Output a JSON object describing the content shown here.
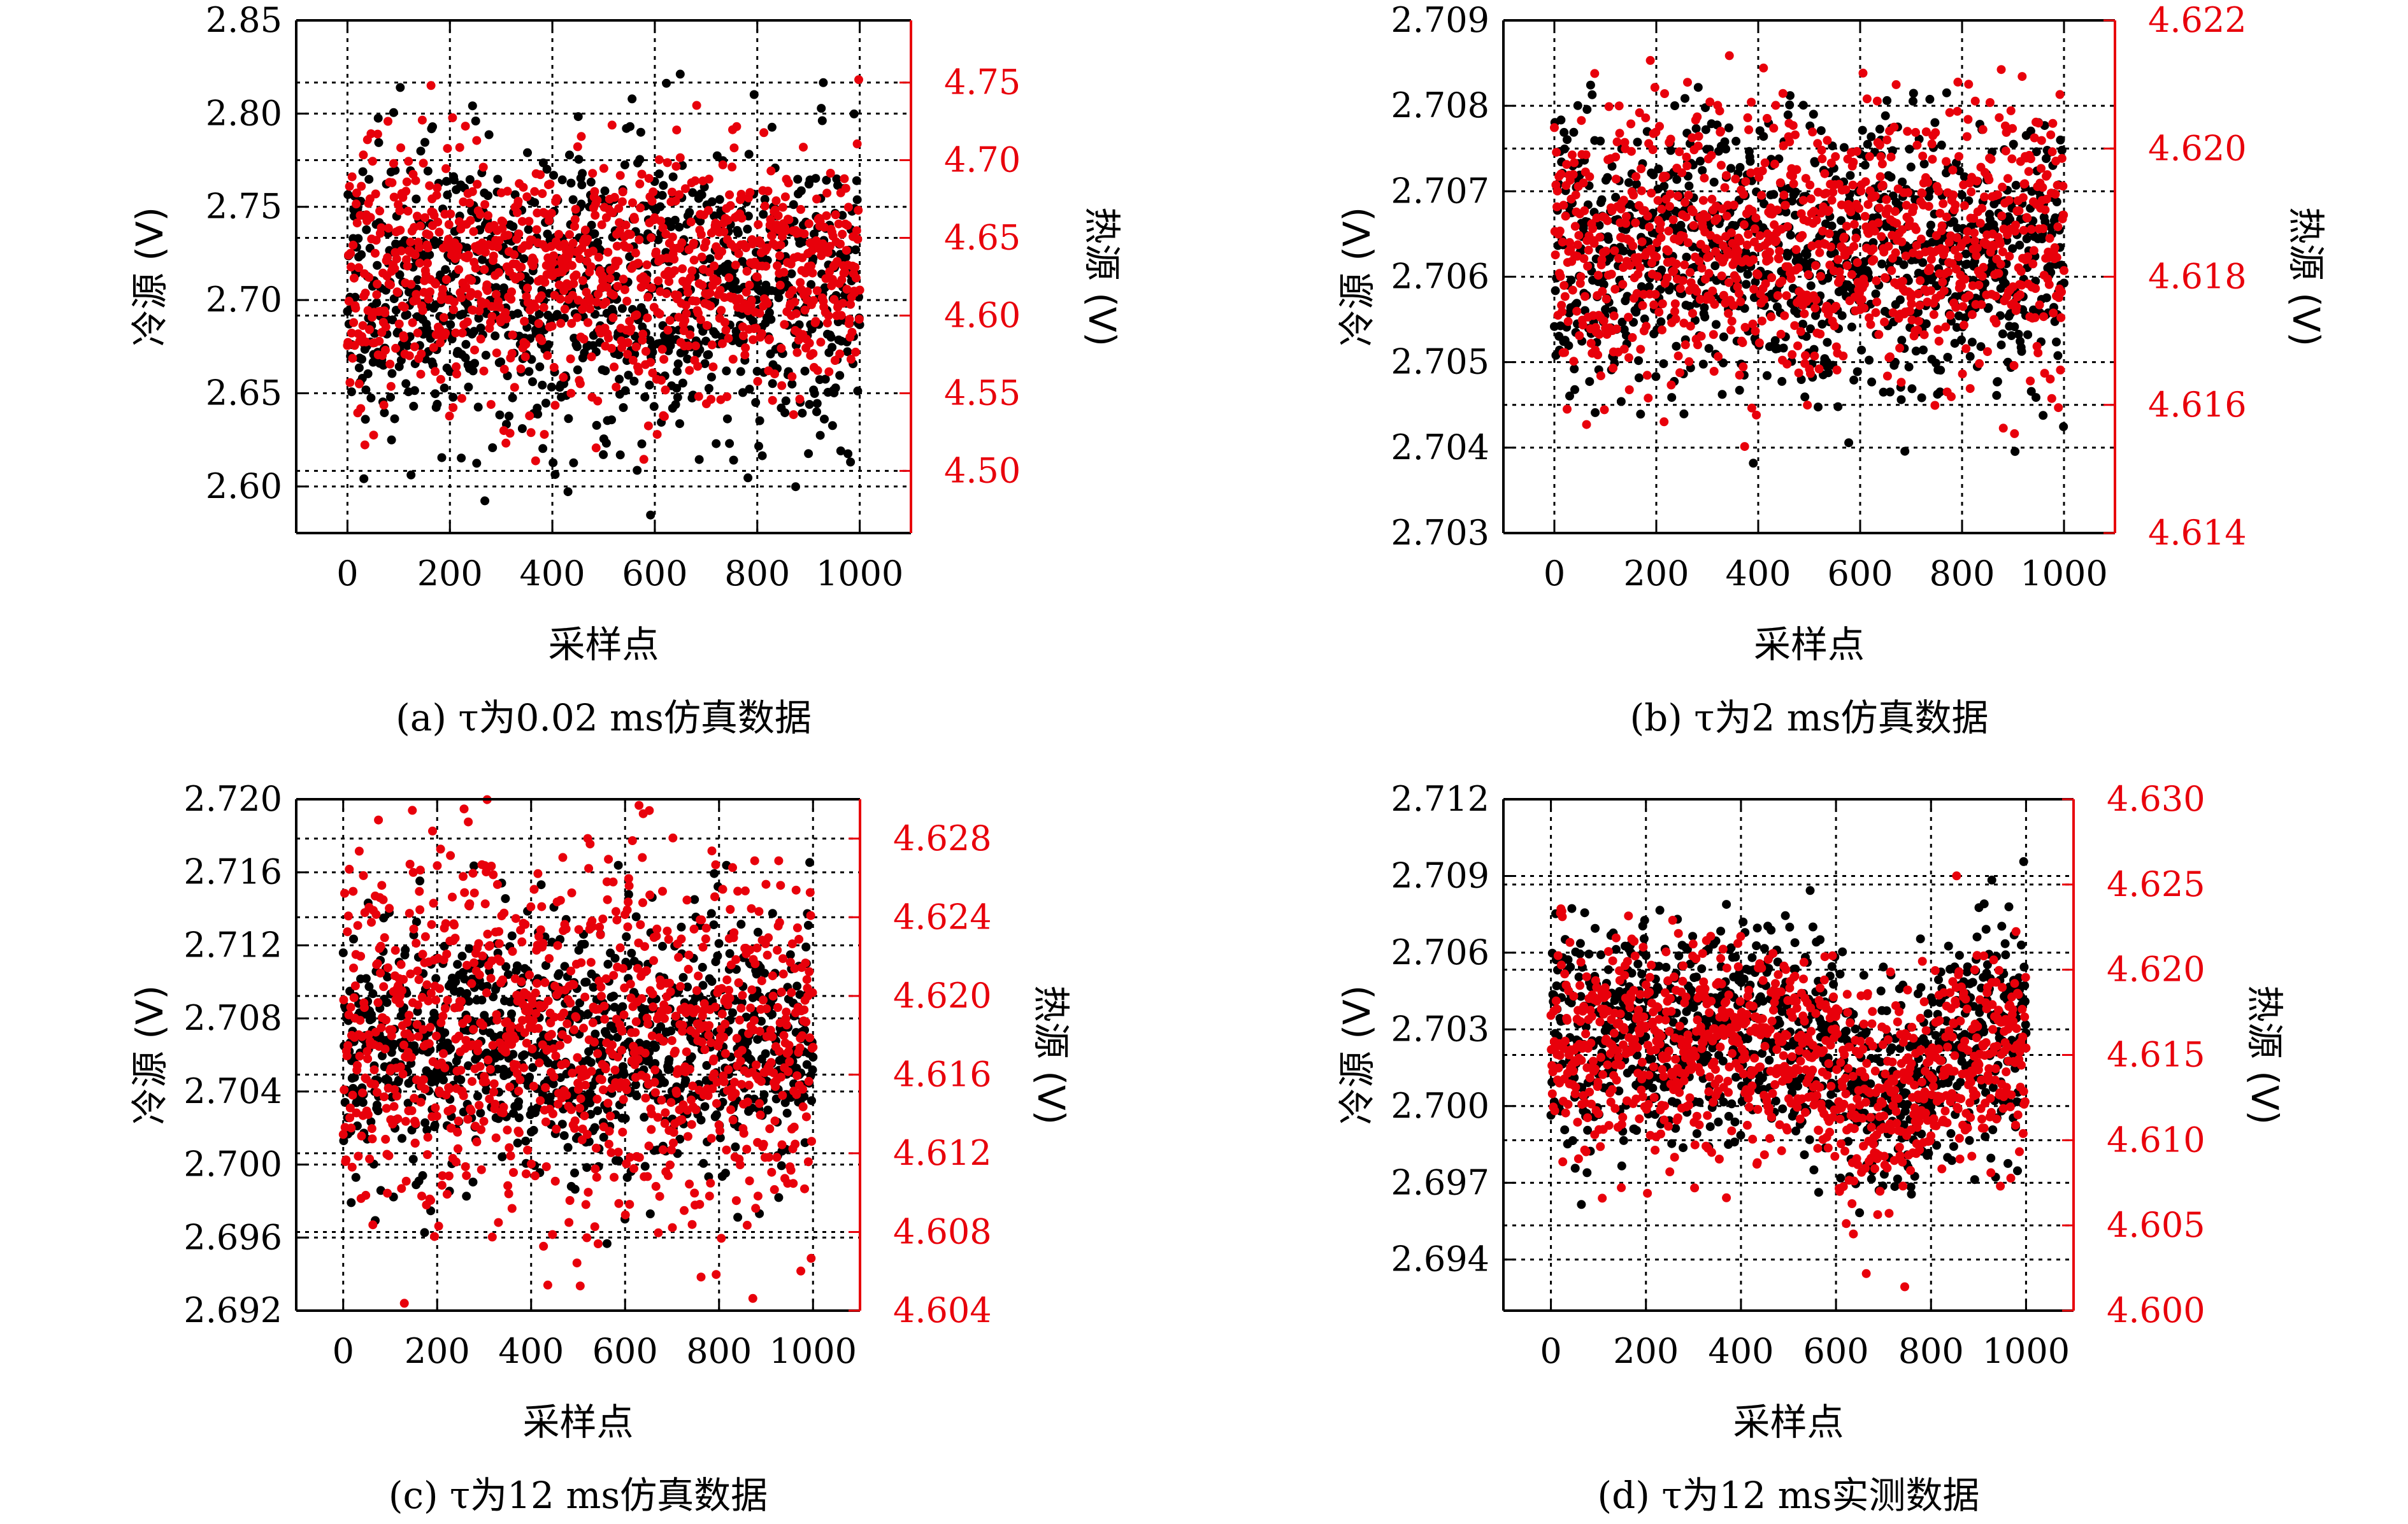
{
  "colors": {
    "cold": "#000000",
    "hot": "#e8000b",
    "grid": "#000000"
  },
  "panels": [
    {
      "caption": "(a) τ为0.02 ms仿真数据",
      "chart_data": {
        "type": "scatter",
        "xlabel": "采样点",
        "ylabel_left": "冷源 (V)",
        "ylabel_right": "热源 (V)",
        "xlim": [
          -100,
          1100
        ],
        "ylim_left": [
          2.575,
          2.85
        ],
        "ylim_right": [
          4.46,
          4.79
        ],
        "xticks": [
          0,
          200,
          400,
          600,
          800,
          1000
        ],
        "yticks_left": [
          2.6,
          2.65,
          2.7,
          2.75,
          2.8,
          2.85
        ],
        "yticks_right": [
          4.5,
          4.55,
          4.6,
          4.65,
          4.7,
          4.75
        ],
        "yticks_left_labels": [
          "2.60",
          "2.65",
          "2.70",
          "2.75",
          "2.80",
          "2.85"
        ],
        "yticks_right_labels": [
          "4.50",
          "4.55",
          "4.60",
          "4.65",
          "4.70",
          "4.75"
        ],
        "grid": true,
        "series": [
          {
            "axis": "left",
            "n": 1000,
            "x_range": [
              0,
              1000
            ],
            "mean": 2.705,
            "std": 0.04,
            "trend": "flat",
            "seed": 11
          },
          {
            "axis": "right",
            "n": 1000,
            "x_range": [
              0,
              1000
            ],
            "mean": 4.625,
            "std": 0.04,
            "trend": "flat",
            "seed": 23
          }
        ]
      }
    },
    {
      "caption": "(b) τ为2 ms仿真数据",
      "chart_data": {
        "type": "scatter",
        "xlabel": "采样点",
        "ylabel_left": "冷源 (V)",
        "ylabel_right": "热源 (V)",
        "xlim": [
          -100,
          1100
        ],
        "ylim_left": [
          2.703,
          2.709
        ],
        "ylim_right": [
          4.614,
          4.622
        ],
        "xticks": [
          0,
          200,
          400,
          600,
          800,
          1000
        ],
        "yticks_left": [
          2.703,
          2.704,
          2.705,
          2.706,
          2.707,
          2.708,
          2.709
        ],
        "yticks_right": [
          4.614,
          4.616,
          4.618,
          4.62,
          4.622
        ],
        "yticks_left_labels": [
          "2.703",
          "2.704",
          "2.705",
          "2.706",
          "2.707",
          "2.708",
          "2.709"
        ],
        "yticks_right_labels": [
          "4.614",
          "4.616",
          "4.618",
          "4.620",
          "4.622"
        ],
        "grid": true,
        "series": [
          {
            "axis": "left",
            "n": 1000,
            "x_range": [
              0,
              1000
            ],
            "mean": 2.7063,
            "std": 0.0008,
            "trend": "flat",
            "seed": 37
          },
          {
            "axis": "right",
            "n": 1000,
            "x_range": [
              0,
              1000
            ],
            "mean": 4.6185,
            "std": 0.0011,
            "trend": "flat",
            "seed": 41
          }
        ]
      }
    },
    {
      "caption": "(c) τ为12 ms仿真数据",
      "chart_data": {
        "type": "scatter",
        "xlabel": "采样点",
        "ylabel_left": "冷源 (V)",
        "ylabel_right": "热源 (V)",
        "xlim": [
          -100,
          1100
        ],
        "ylim_left": [
          2.692,
          2.72
        ],
        "ylim_right": [
          4.604,
          4.63
        ],
        "xticks": [
          0,
          200,
          400,
          600,
          800,
          1000
        ],
        "yticks_left": [
          2.692,
          2.696,
          2.7,
          2.704,
          2.708,
          2.712,
          2.716,
          2.72
        ],
        "yticks_right": [
          4.604,
          4.608,
          4.612,
          4.616,
          4.62,
          4.624,
          4.628
        ],
        "yticks_left_labels": [
          "2.692",
          "2.696",
          "2.700",
          "2.704",
          "2.708",
          "2.712",
          "2.716",
          "2.720"
        ],
        "yticks_right_labels": [
          "4.604",
          "4.608",
          "4.612",
          "4.616",
          "4.620",
          "4.624",
          "4.628"
        ],
        "grid": true,
        "series": [
          {
            "axis": "left",
            "n": 1000,
            "x_range": [
              0,
              1000
            ],
            "mean": 2.7065,
            "std": 0.0036,
            "trend": "flat",
            "seed": 53
          },
          {
            "axis": "right",
            "n": 1000,
            "x_range": [
              0,
              1000
            ],
            "mean": 4.6175,
            "std": 0.0045,
            "trend": "flat",
            "seed": 67
          }
        ]
      }
    },
    {
      "caption": "(d) τ为12 ms实测数据",
      "chart_data": {
        "type": "scatter",
        "xlabel": "采样点",
        "ylabel_left": "冷源 (V)",
        "ylabel_right": "热源 (V)",
        "xlim": [
          -100,
          1100
        ],
        "ylim_left": [
          2.692,
          2.712
        ],
        "ylim_right": [
          4.6,
          4.63
        ],
        "xticks": [
          0,
          200,
          400,
          600,
          800,
          1000
        ],
        "yticks_left": [
          2.694,
          2.697,
          2.7,
          2.703,
          2.706,
          2.709,
          2.712
        ],
        "yticks_right": [
          4.6,
          4.605,
          4.61,
          4.615,
          4.62,
          4.625,
          4.63
        ],
        "yticks_left_labels": [
          "2.694",
          "2.697",
          "2.700",
          "2.703",
          "2.706",
          "2.709",
          "2.712"
        ],
        "yticks_right_labels": [
          "4.600",
          "4.605",
          "4.610",
          "4.615",
          "4.620",
          "4.625",
          "4.630"
        ],
        "grid": true,
        "series": [
          {
            "axis": "left",
            "n": 1000,
            "x_range": [
              0,
              1000
            ],
            "mean": 2.703,
            "std": 0.0022,
            "trend": "dip",
            "seed": 79
          },
          {
            "axis": "right",
            "n": 1000,
            "x_range": [
              0,
              1000
            ],
            "mean": 4.6155,
            "std": 0.0032,
            "trend": "dip",
            "seed": 83
          }
        ]
      }
    }
  ]
}
